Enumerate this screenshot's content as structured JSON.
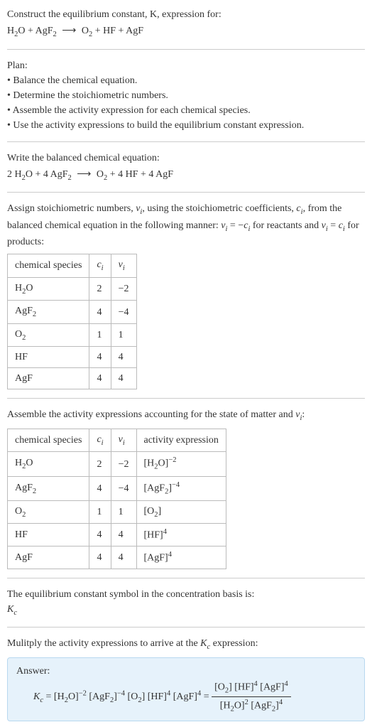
{
  "header": {
    "prompt_line1": "Construct the equilibrium constant, K, expression for:",
    "equation_unbalanced_html": "H<span class='sub'>2</span>O + AgF<span class='sub'>2</span> <span class='arrow'>⟶</span> O<span class='sub'>2</span> + HF + AgF"
  },
  "plan": {
    "title": "Plan:",
    "items": [
      "Balance the chemical equation.",
      "Determine the stoichiometric numbers.",
      "Assemble the activity expression for each chemical species.",
      "Use the activity expressions to build the equilibrium constant expression."
    ]
  },
  "balanced": {
    "title": "Write the balanced chemical equation:",
    "equation_html": "2 H<span class='sub'>2</span>O + 4 AgF<span class='sub'>2</span> <span class='arrow'>⟶</span> O<span class='sub'>2</span> + 4 HF + 4 AgF"
  },
  "stoich": {
    "intro_html": "Assign stoichiometric numbers, <span class='italic'>ν<span class='sub'>i</span></span>, using the stoichiometric coefficients, <span class='italic'>c<span class='sub'>i</span></span>, from the balanced chemical equation in the following manner: <span class='italic'>ν<span class='sub'>i</span></span> = −<span class='italic'>c<span class='sub'>i</span></span> for reactants and <span class='italic'>ν<span class='sub'>i</span></span> = <span class='italic'>c<span class='sub'>i</span></span> for products:",
    "headers": {
      "species": "chemical species",
      "ci_html": "<span class='italic'>c<span class='sub'>i</span></span>",
      "vi_html": "<span class='italic'>ν<span class='sub'>i</span></span>"
    },
    "rows": [
      {
        "species_html": "H<span class='sub'>2</span>O",
        "ci": "2",
        "vi": "−2"
      },
      {
        "species_html": "AgF<span class='sub'>2</span>",
        "ci": "4",
        "vi": "−4"
      },
      {
        "species_html": "O<span class='sub'>2</span>",
        "ci": "1",
        "vi": "1"
      },
      {
        "species_html": "HF",
        "ci": "4",
        "vi": "4"
      },
      {
        "species_html": "AgF",
        "ci": "4",
        "vi": "4"
      }
    ]
  },
  "activity": {
    "intro_html": "Assemble the activity expressions accounting for the state of matter and <span class='italic'>ν<span class='sub'>i</span></span>:",
    "headers": {
      "species": "chemical species",
      "ci_html": "<span class='italic'>c<span class='sub'>i</span></span>",
      "vi_html": "<span class='italic'>ν<span class='sub'>i</span></span>",
      "act": "activity expression"
    },
    "rows": [
      {
        "species_html": "H<span class='sub'>2</span>O",
        "ci": "2",
        "vi": "−2",
        "act_html": "[H<span class='sub'>2</span>O]<span class='sup'>−2</span>"
      },
      {
        "species_html": "AgF<span class='sub'>2</span>",
        "ci": "4",
        "vi": "−4",
        "act_html": "[AgF<span class='sub'>2</span>]<span class='sup'>−4</span>"
      },
      {
        "species_html": "O<span class='sub'>2</span>",
        "ci": "1",
        "vi": "1",
        "act_html": "[O<span class='sub'>2</span>]"
      },
      {
        "species_html": "HF",
        "ci": "4",
        "vi": "4",
        "act_html": "[HF]<span class='sup'>4</span>"
      },
      {
        "species_html": "AgF",
        "ci": "4",
        "vi": "4",
        "act_html": "[AgF]<span class='sup'>4</span>"
      }
    ]
  },
  "symbol": {
    "line1": "The equilibrium constant symbol in the concentration basis is:",
    "kc_html": "<span class='italic'>K<span class='sub'>c</span></span>"
  },
  "multiply": {
    "intro_html": "Mulitply the activity expressions to arrive at the <span class='italic'>K<span class='sub'>c</span></span> expression:"
  },
  "answer": {
    "label": "Answer:",
    "lhs_html": "<span class='italic'>K<span class='sub'>c</span></span> = [H<span class='sub'>2</span>O]<span class='sup'>−2</span> [AgF<span class='sub'>2</span>]<span class='sup'>−4</span> [O<span class='sub'>2</span>] [HF]<span class='sup'>4</span> [AgF]<span class='sup'>4</span> = ",
    "frac_num_html": "[O<span class='sub'>2</span>] [HF]<span class='sup'>4</span> [AgF]<span class='sup'>4</span>",
    "frac_den_html": "[H<span class='sub'>2</span>O]<span class='sup'>2</span> [AgF<span class='sub'>2</span>]<span class='sup'>4</span>"
  },
  "colors": {
    "text": "#333333",
    "rule": "#cccccc",
    "table_border": "#bbbbbb",
    "answer_bg": "#e6f2fb",
    "answer_border": "#b8d8ef"
  }
}
